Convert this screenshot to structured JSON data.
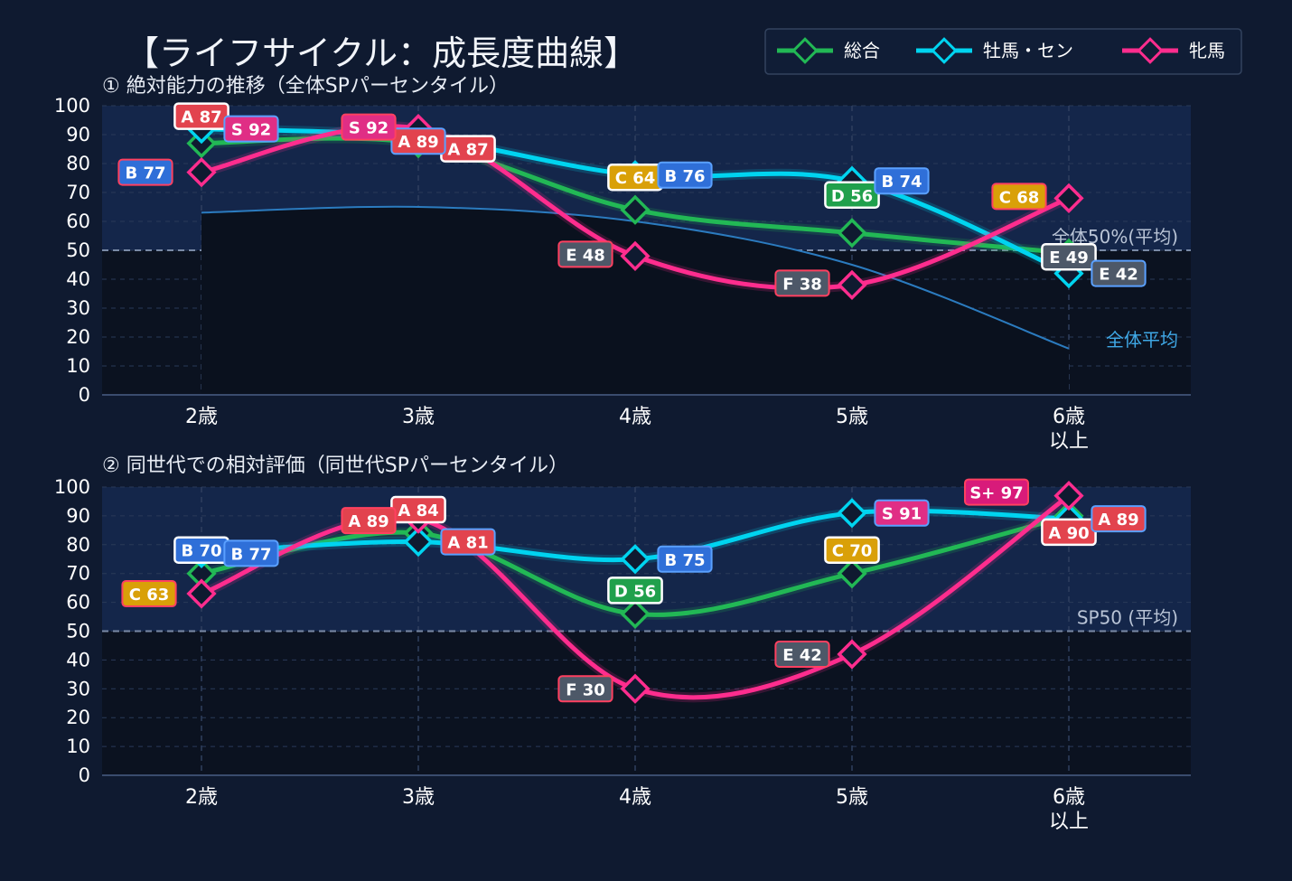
{
  "title": "【ライフサイクル：成長度曲線】",
  "legend": [
    {
      "name": "総合",
      "color": "#22b855"
    },
    {
      "name": "牡馬・セン",
      "color": "#00d4f0"
    },
    {
      "name": "牝馬",
      "color": "#ff2d8e"
    }
  ],
  "grade_colors": {
    "S+": "#d81b7a",
    "S": "#e02e85",
    "A": "#e2434e",
    "B": "#2f6fd8",
    "C": "#d9a008",
    "D": "#20a04c",
    "E": "#4d5868",
    "F": "#4d5868"
  },
  "chart_data": [
    {
      "type": "line",
      "subtitle": "① 絶対能力の推移（全体SPパーセンタイル）",
      "categories": [
        "2歳",
        "3歳",
        "4歳",
        "5歳",
        "6歳\n以上"
      ],
      "ylim": [
        0,
        100
      ],
      "yticks": [
        0,
        10,
        20,
        30,
        40,
        50,
        60,
        70,
        80,
        90,
        100
      ],
      "grid": true,
      "reference_line": {
        "value": 50,
        "label": "全体50%(平均)"
      },
      "average_curve": {
        "label": "全体平均",
        "values": [
          63,
          65,
          60,
          45,
          16
        ]
      },
      "series": [
        {
          "name": "総合",
          "values": [
            87,
            87,
            64,
            56,
            49
          ],
          "labels": [
            {
              "text": "A 87",
              "grade": "A"
            },
            {
              "text": "A 87",
              "grade": "A"
            },
            {
              "text": "C 64",
              "grade": "C"
            },
            {
              "text": "D 56",
              "grade": "D"
            },
            {
              "text": "E 49",
              "grade": "E"
            }
          ]
        },
        {
          "name": "牡馬・セン",
          "values": [
            92,
            89,
            76,
            74,
            42
          ],
          "labels": [
            {
              "text": "S 92",
              "grade": "S"
            },
            {
              "text": "A 89",
              "grade": "A"
            },
            {
              "text": "B 76",
              "grade": "B"
            },
            {
              "text": "B 74",
              "grade": "B"
            },
            {
              "text": "E 42",
              "grade": "E"
            }
          ]
        },
        {
          "name": "牝馬",
          "values": [
            77,
            92,
            48,
            38,
            68
          ],
          "labels": [
            {
              "text": "B 77",
              "grade": "B"
            },
            {
              "text": "S 92",
              "grade": "S"
            },
            {
              "text": "E 48",
              "grade": "E"
            },
            {
              "text": "F 38",
              "grade": "F"
            },
            {
              "text": "C 68",
              "grade": "C"
            }
          ]
        }
      ]
    },
    {
      "type": "line",
      "subtitle": "② 同世代での相対評価（同世代SPパーセンタイル）",
      "categories": [
        "2歳",
        "3歳",
        "4歳",
        "5歳",
        "6歳\n以上"
      ],
      "ylim": [
        0,
        100
      ],
      "yticks": [
        0,
        10,
        20,
        30,
        40,
        50,
        60,
        70,
        80,
        90,
        100
      ],
      "grid": true,
      "reference_line": {
        "value": 50,
        "label": "SP50 (平均)"
      },
      "series": [
        {
          "name": "総合",
          "values": [
            70,
            84,
            56,
            70,
            90
          ],
          "labels": [
            {
              "text": "B 70",
              "grade": "B"
            },
            {
              "text": "A 84",
              "grade": "A"
            },
            {
              "text": "D 56",
              "grade": "D"
            },
            {
              "text": "C 70",
              "grade": "C"
            },
            {
              "text": "A 90",
              "grade": "A"
            }
          ]
        },
        {
          "name": "牡馬・セン",
          "values": [
            77,
            81,
            75,
            91,
            89
          ],
          "labels": [
            {
              "text": "B 77",
              "grade": "B"
            },
            {
              "text": "A 81",
              "grade": "A"
            },
            {
              "text": "B 75",
              "grade": "B"
            },
            {
              "text": "S 91",
              "grade": "S"
            },
            {
              "text": "A 89",
              "grade": "A"
            }
          ]
        },
        {
          "name": "牝馬",
          "values": [
            63,
            89,
            30,
            42,
            97
          ],
          "labels": [
            {
              "text": "C 63",
              "grade": "C"
            },
            {
              "text": "A 89",
              "grade": "A"
            },
            {
              "text": "F 30",
              "grade": "F"
            },
            {
              "text": "E 42",
              "grade": "E"
            },
            {
              "text": "S+ 97",
              "grade": "S+"
            }
          ]
        }
      ]
    }
  ]
}
